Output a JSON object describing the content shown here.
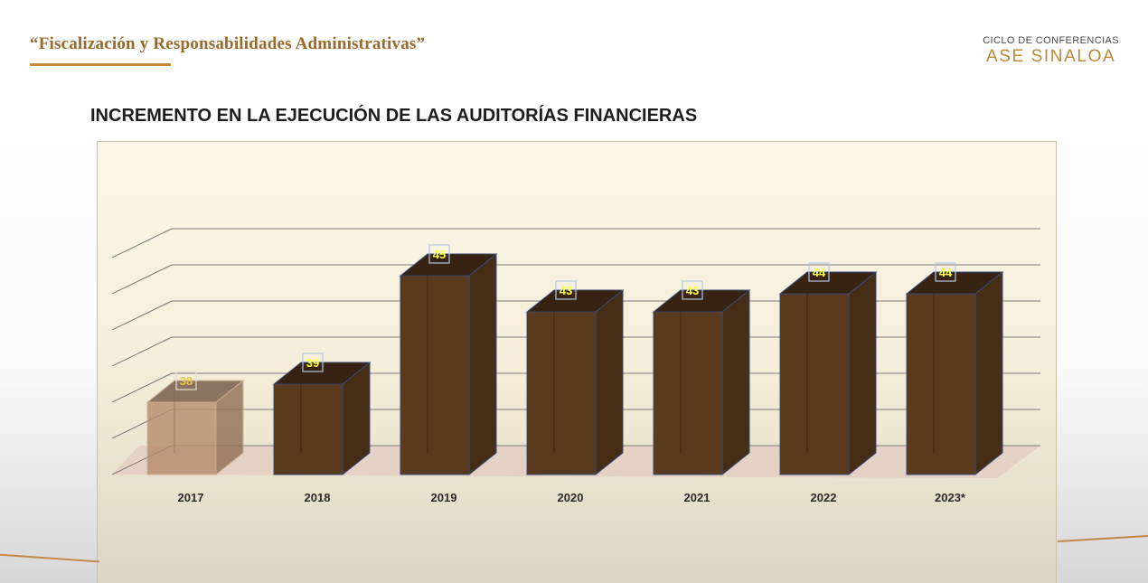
{
  "header": {
    "title": "“Fiscalización y Responsabilidades Administrativas”",
    "brand_line1": "CICLO DE CONFERENCIAS",
    "brand_line2": "ASE SINALOA"
  },
  "slide": {
    "title": "INCREMENTO EN LA EJECUCIÓN DE LAS AUDITORÍAS FINANCIERAS"
  },
  "colors": {
    "bar": "#5a3a1c",
    "bar_highlight": "#b48a6a",
    "label_box": "#fdf7a8",
    "label_text_dark": "#1b1b1b",
    "label_text_light": "#e8c64a",
    "floor": "#e2cbc0"
  },
  "chart_data": {
    "type": "bar",
    "categories": [
      "2017",
      "2018",
      "2019",
      "2020",
      "2021",
      "2022",
      "2023*"
    ],
    "values": [
      38,
      39,
      45,
      43,
      43,
      44,
      44
    ],
    "data_labels": [
      "38",
      "39",
      "45",
      "43",
      "43",
      "44",
      "44"
    ],
    "title": "",
    "xlabel": "",
    "ylabel": "",
    "ylim": [
      34,
      46
    ],
    "grid": true,
    "legend": "none",
    "style": "3d-column",
    "highlighted_index": 0
  }
}
